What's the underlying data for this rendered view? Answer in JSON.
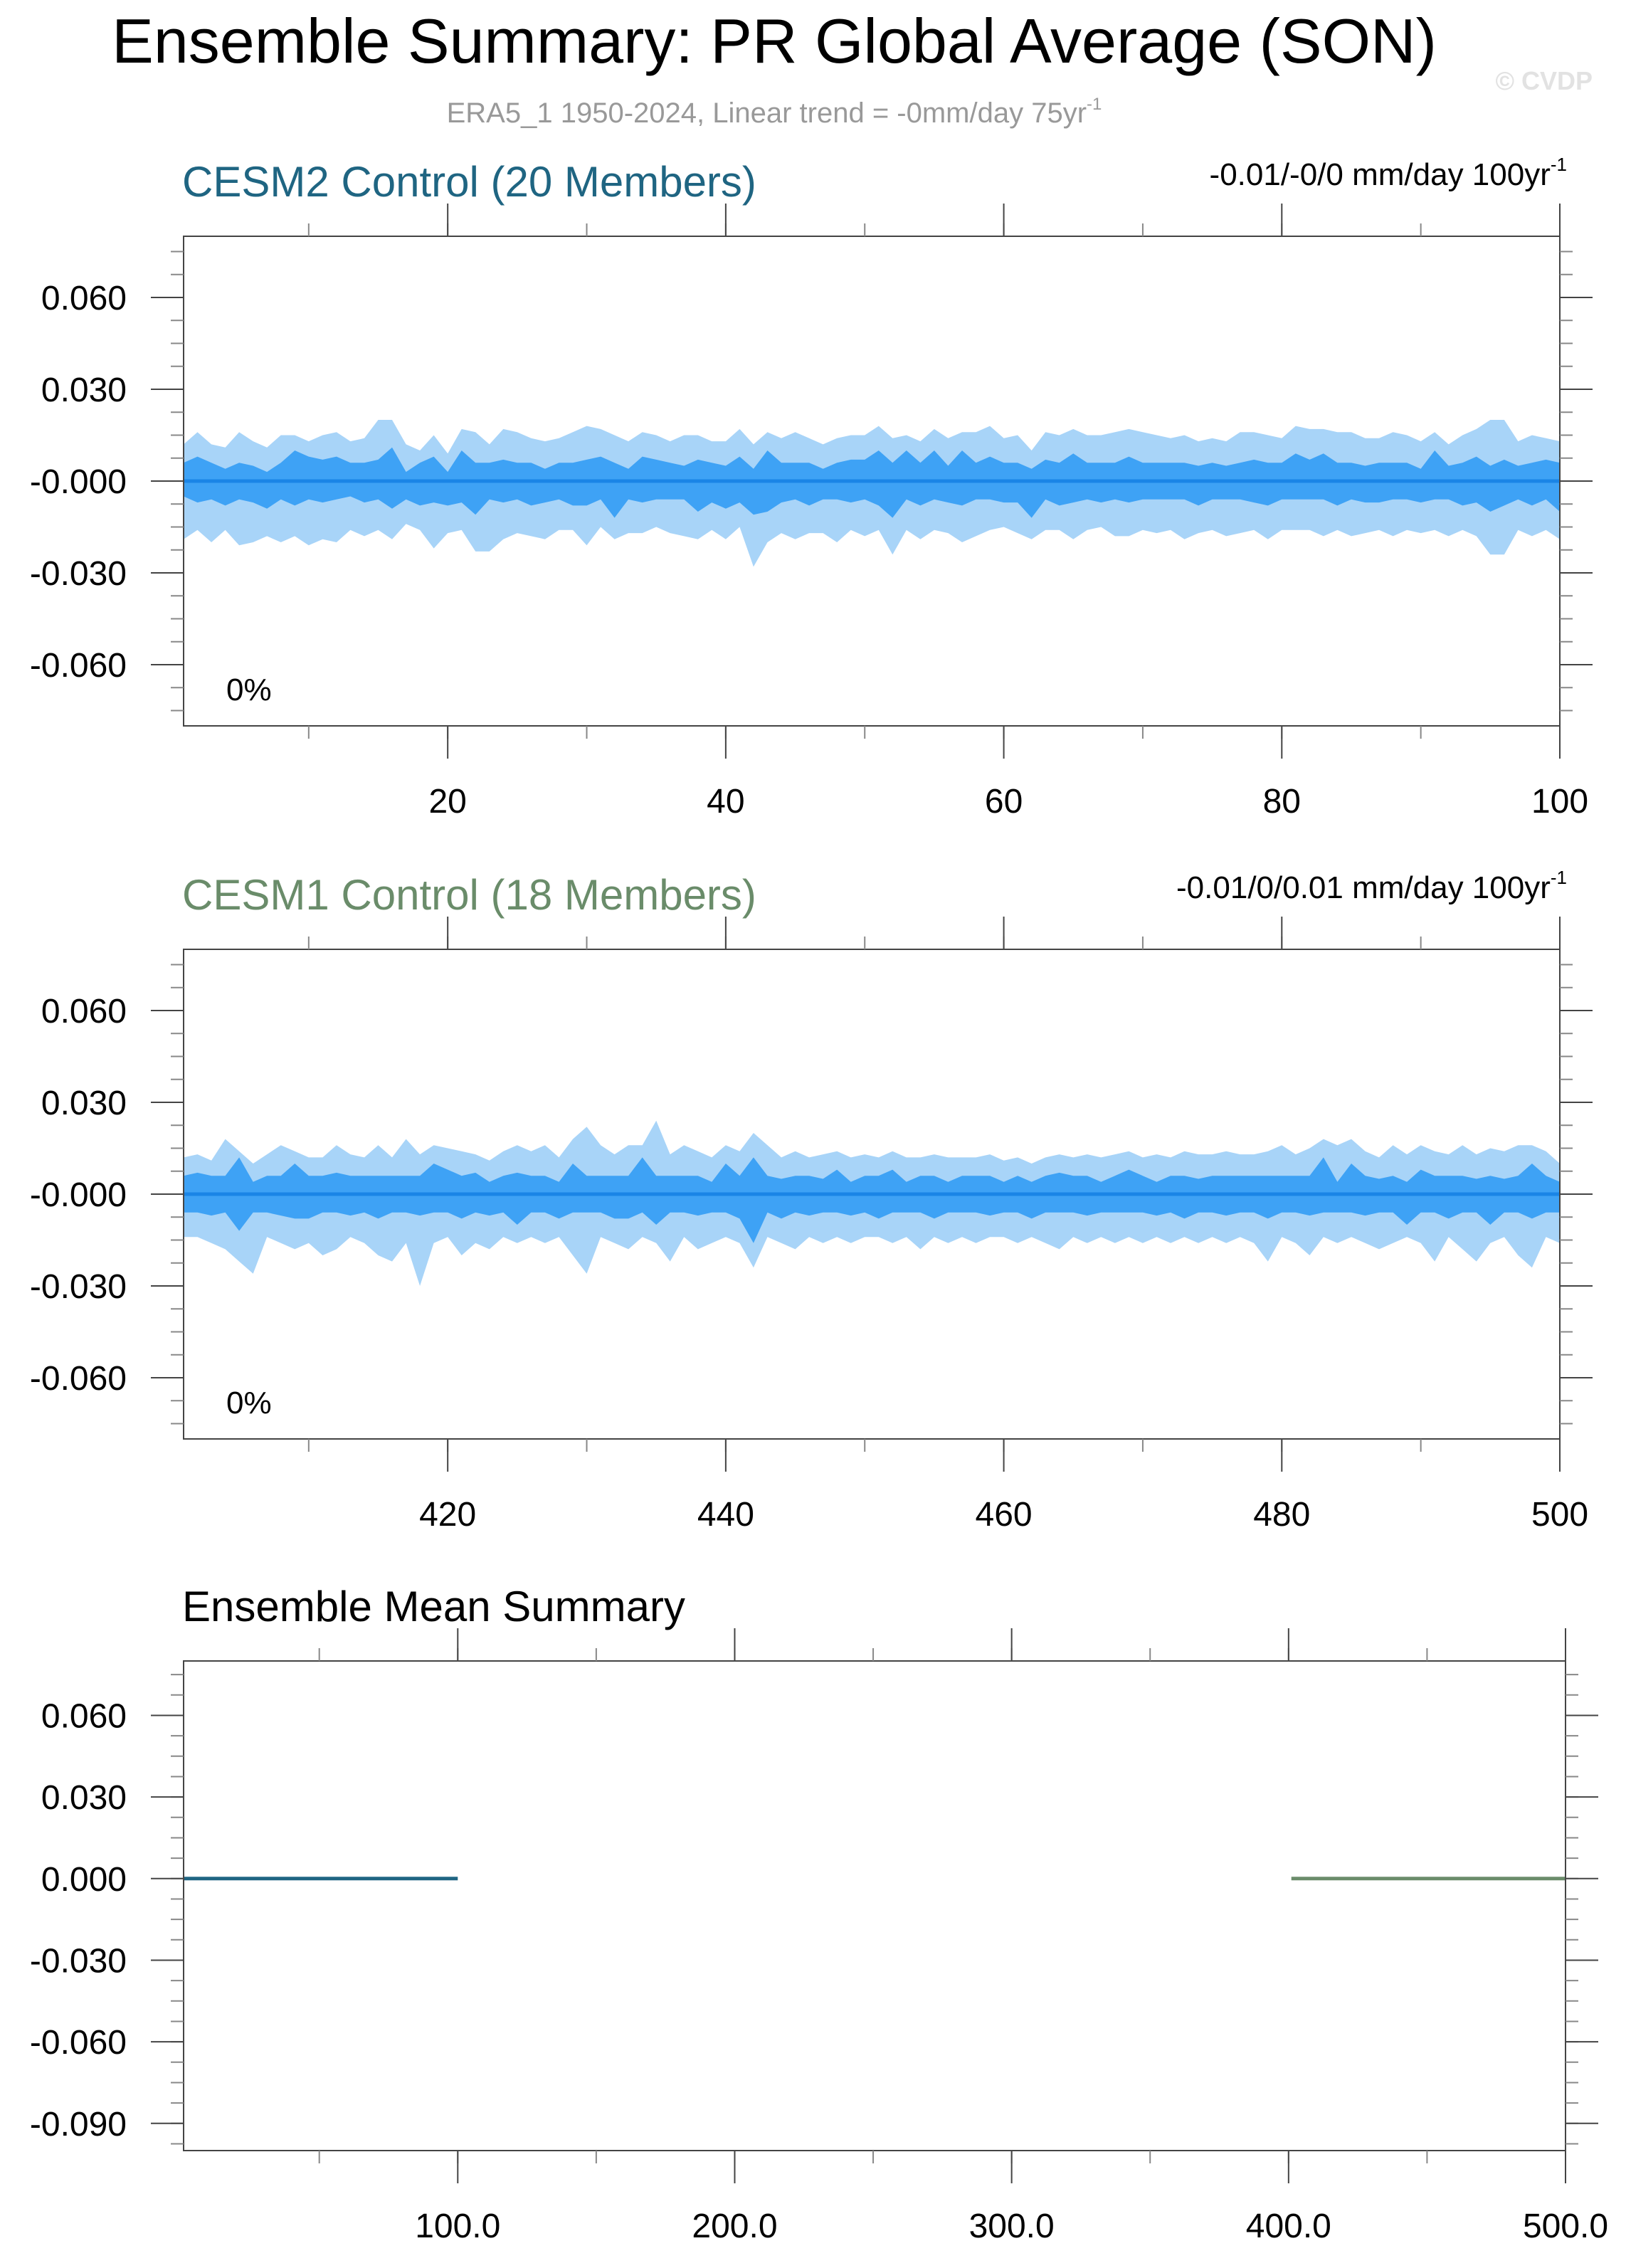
{
  "title": "Ensemble Summary: PR Global Average (SON)",
  "subtitle": "ERA5_1 1950-2024, Linear trend = -0mm/day 75yr",
  "subtitle_sup": "-1",
  "watermark": "© CVDP",
  "colors": {
    "cesm2": "#1f6582",
    "cesm1": "#6a8c6a",
    "band_outer": "#a8d4f8",
    "band_inner": "#3ea2f5",
    "mean_line": "#1a85e6",
    "axis": "#444444"
  },
  "chart_data": [
    {
      "type": "area",
      "title": "CESM2 Control (20 Members)",
      "trend_label": "-0.01/-0/0 mm/day 100yr",
      "trend_sup": "-1",
      "annotation": "0%",
      "xlim": [
        1,
        100
      ],
      "ylim": [
        -0.08,
        0.08
      ],
      "x_ticks": [
        20,
        40,
        60,
        80,
        100
      ],
      "x_tick_labels": [
        "20",
        "40",
        "60",
        "80",
        "100"
      ],
      "y_ticks": [
        0.06,
        0.03,
        0.0,
        -0.03,
        -0.06
      ],
      "y_tick_labels": [
        "0.060",
        "0.030",
        "-0.000",
        "-0.030",
        "-0.060"
      ],
      "x_start": 1,
      "outer_upper": [
        0.012,
        0.016,
        0.012,
        0.011,
        0.016,
        0.013,
        0.011,
        0.015,
        0.015,
        0.013,
        0.015,
        0.016,
        0.013,
        0.014,
        0.02,
        0.02,
        0.012,
        0.01,
        0.015,
        0.009,
        0.017,
        0.016,
        0.012,
        0.017,
        0.016,
        0.014,
        0.013,
        0.014,
        0.016,
        0.018,
        0.017,
        0.015,
        0.013,
        0.016,
        0.015,
        0.013,
        0.015,
        0.015,
        0.013,
        0.013,
        0.017,
        0.012,
        0.016,
        0.014,
        0.016,
        0.014,
        0.012,
        0.014,
        0.015,
        0.015,
        0.018,
        0.014,
        0.015,
        0.013,
        0.017,
        0.014,
        0.016,
        0.016,
        0.018,
        0.014,
        0.015,
        0.01,
        0.016,
        0.015,
        0.017,
        0.015,
        0.015,
        0.016,
        0.017,
        0.016,
        0.015,
        0.014,
        0.015,
        0.013,
        0.014,
        0.013,
        0.016,
        0.016,
        0.015,
        0.014,
        0.018,
        0.017,
        0.017,
        0.016,
        0.016,
        0.014,
        0.014,
        0.016,
        0.015,
        0.013,
        0.016,
        0.012,
        0.015,
        0.017,
        0.02,
        0.02,
        0.013,
        0.015,
        0.014,
        0.013
      ],
      "inner_upper": [
        0.006,
        0.008,
        0.006,
        0.004,
        0.006,
        0.005,
        0.003,
        0.006,
        0.01,
        0.008,
        0.007,
        0.008,
        0.006,
        0.006,
        0.007,
        0.011,
        0.003,
        0.006,
        0.008,
        0.003,
        0.01,
        0.006,
        0.006,
        0.007,
        0.006,
        0.006,
        0.004,
        0.006,
        0.006,
        0.007,
        0.008,
        0.006,
        0.004,
        0.008,
        0.007,
        0.006,
        0.005,
        0.007,
        0.006,
        0.005,
        0.008,
        0.004,
        0.01,
        0.006,
        0.006,
        0.006,
        0.004,
        0.006,
        0.007,
        0.007,
        0.01,
        0.006,
        0.01,
        0.006,
        0.01,
        0.005,
        0.01,
        0.006,
        0.008,
        0.006,
        0.006,
        0.004,
        0.007,
        0.006,
        0.009,
        0.006,
        0.006,
        0.006,
        0.008,
        0.006,
        0.006,
        0.006,
        0.006,
        0.005,
        0.006,
        0.005,
        0.006,
        0.007,
        0.006,
        0.006,
        0.009,
        0.007,
        0.009,
        0.006,
        0.006,
        0.005,
        0.006,
        0.006,
        0.006,
        0.004,
        0.01,
        0.005,
        0.006,
        0.008,
        0.005,
        0.007,
        0.005,
        0.006,
        0.007,
        0.006
      ],
      "inner_lower": [
        -0.005,
        -0.007,
        -0.006,
        -0.008,
        -0.006,
        -0.007,
        -0.009,
        -0.006,
        -0.008,
        -0.006,
        -0.007,
        -0.006,
        -0.005,
        -0.007,
        -0.006,
        -0.009,
        -0.006,
        -0.008,
        -0.007,
        -0.008,
        -0.007,
        -0.011,
        -0.006,
        -0.007,
        -0.006,
        -0.008,
        -0.007,
        -0.006,
        -0.008,
        -0.008,
        -0.006,
        -0.012,
        -0.006,
        -0.007,
        -0.006,
        -0.006,
        -0.006,
        -0.01,
        -0.007,
        -0.009,
        -0.007,
        -0.011,
        -0.01,
        -0.007,
        -0.006,
        -0.008,
        -0.006,
        -0.006,
        -0.007,
        -0.006,
        -0.008,
        -0.012,
        -0.006,
        -0.008,
        -0.006,
        -0.007,
        -0.008,
        -0.006,
        -0.006,
        -0.007,
        -0.007,
        -0.012,
        -0.006,
        -0.008,
        -0.007,
        -0.006,
        -0.007,
        -0.006,
        -0.007,
        -0.006,
        -0.006,
        -0.006,
        -0.006,
        -0.008,
        -0.006,
        -0.006,
        -0.006,
        -0.007,
        -0.008,
        -0.006,
        -0.006,
        -0.006,
        -0.006,
        -0.008,
        -0.006,
        -0.007,
        -0.007,
        -0.006,
        -0.006,
        -0.007,
        -0.006,
        -0.006,
        -0.008,
        -0.007,
        -0.01,
        -0.008,
        -0.006,
        -0.008,
        -0.006,
        -0.01
      ],
      "outer_lower": [
        -0.019,
        -0.016,
        -0.02,
        -0.016,
        -0.021,
        -0.02,
        -0.018,
        -0.02,
        -0.018,
        -0.021,
        -0.019,
        -0.02,
        -0.016,
        -0.018,
        -0.016,
        -0.019,
        -0.014,
        -0.016,
        -0.022,
        -0.017,
        -0.016,
        -0.023,
        -0.023,
        -0.019,
        -0.017,
        -0.018,
        -0.019,
        -0.016,
        -0.016,
        -0.021,
        -0.015,
        -0.019,
        -0.017,
        -0.017,
        -0.015,
        -0.017,
        -0.018,
        -0.019,
        -0.016,
        -0.019,
        -0.015,
        -0.028,
        -0.02,
        -0.017,
        -0.019,
        -0.017,
        -0.017,
        -0.02,
        -0.016,
        -0.018,
        -0.016,
        -0.024,
        -0.016,
        -0.019,
        -0.016,
        -0.017,
        -0.02,
        -0.018,
        -0.016,
        -0.015,
        -0.017,
        -0.019,
        -0.016,
        -0.016,
        -0.019,
        -0.016,
        -0.015,
        -0.018,
        -0.018,
        -0.016,
        -0.017,
        -0.016,
        -0.019,
        -0.017,
        -0.016,
        -0.018,
        -0.017,
        -0.016,
        -0.019,
        -0.016,
        -0.016,
        -0.016,
        -0.018,
        -0.016,
        -0.018,
        -0.017,
        -0.016,
        -0.018,
        -0.016,
        -0.017,
        -0.016,
        -0.018,
        -0.016,
        -0.018,
        -0.024,
        -0.024,
        -0.016,
        -0.018,
        -0.016,
        -0.019
      ],
      "mean": 0.0
    },
    {
      "type": "area",
      "title": "CESM1 Control (18 Members)",
      "trend_label": "-0.01/0/0.01 mm/day 100yr",
      "trend_sup": "-1",
      "annotation": "0%",
      "xlim": [
        401,
        500
      ],
      "ylim": [
        -0.08,
        0.08
      ],
      "x_ticks": [
        420,
        440,
        460,
        480,
        500
      ],
      "x_tick_labels": [
        "420",
        "440",
        "460",
        "480",
        "500"
      ],
      "y_ticks": [
        0.06,
        0.03,
        0.0,
        -0.03,
        -0.06
      ],
      "y_tick_labels": [
        "0.060",
        "0.030",
        "-0.000",
        "-0.030",
        "-0.060"
      ],
      "x_start": 401,
      "outer_upper": [
        0.012,
        0.013,
        0.011,
        0.018,
        0.014,
        0.01,
        0.013,
        0.016,
        0.014,
        0.012,
        0.012,
        0.016,
        0.013,
        0.012,
        0.016,
        0.012,
        0.018,
        0.013,
        0.016,
        0.015,
        0.014,
        0.013,
        0.011,
        0.014,
        0.016,
        0.014,
        0.016,
        0.012,
        0.018,
        0.022,
        0.016,
        0.013,
        0.016,
        0.016,
        0.024,
        0.013,
        0.016,
        0.014,
        0.012,
        0.016,
        0.014,
        0.02,
        0.016,
        0.012,
        0.014,
        0.012,
        0.013,
        0.014,
        0.012,
        0.013,
        0.012,
        0.014,
        0.012,
        0.012,
        0.013,
        0.012,
        0.012,
        0.012,
        0.013,
        0.011,
        0.012,
        0.01,
        0.012,
        0.013,
        0.012,
        0.013,
        0.012,
        0.013,
        0.014,
        0.012,
        0.013,
        0.012,
        0.014,
        0.013,
        0.013,
        0.014,
        0.013,
        0.013,
        0.014,
        0.016,
        0.013,
        0.015,
        0.018,
        0.016,
        0.018,
        0.014,
        0.012,
        0.016,
        0.013,
        0.016,
        0.014,
        0.013,
        0.016,
        0.013,
        0.015,
        0.014,
        0.016,
        0.016,
        0.014,
        0.01
      ],
      "inner_upper": [
        0.006,
        0.007,
        0.006,
        0.006,
        0.012,
        0.004,
        0.006,
        0.006,
        0.01,
        0.006,
        0.006,
        0.007,
        0.006,
        0.006,
        0.006,
        0.006,
        0.006,
        0.006,
        0.01,
        0.008,
        0.006,
        0.007,
        0.004,
        0.006,
        0.007,
        0.006,
        0.006,
        0.004,
        0.01,
        0.006,
        0.006,
        0.006,
        0.006,
        0.012,
        0.006,
        0.006,
        0.006,
        0.006,
        0.004,
        0.01,
        0.006,
        0.012,
        0.006,
        0.005,
        0.006,
        0.006,
        0.005,
        0.008,
        0.004,
        0.006,
        0.006,
        0.008,
        0.004,
        0.006,
        0.006,
        0.004,
        0.006,
        0.006,
        0.006,
        0.004,
        0.006,
        0.004,
        0.006,
        0.007,
        0.006,
        0.006,
        0.004,
        0.006,
        0.008,
        0.006,
        0.004,
        0.006,
        0.006,
        0.005,
        0.006,
        0.006,
        0.006,
        0.006,
        0.006,
        0.006,
        0.006,
        0.006,
        0.012,
        0.004,
        0.01,
        0.006,
        0.005,
        0.006,
        0.004,
        0.008,
        0.006,
        0.006,
        0.006,
        0.005,
        0.006,
        0.005,
        0.006,
        0.01,
        0.006,
        0.004
      ],
      "inner_lower": [
        -0.006,
        -0.006,
        -0.007,
        -0.006,
        -0.012,
        -0.006,
        -0.006,
        -0.007,
        -0.008,
        -0.008,
        -0.006,
        -0.006,
        -0.007,
        -0.006,
        -0.008,
        -0.006,
        -0.006,
        -0.007,
        -0.006,
        -0.006,
        -0.008,
        -0.006,
        -0.007,
        -0.006,
        -0.01,
        -0.006,
        -0.006,
        -0.008,
        -0.006,
        -0.006,
        -0.006,
        -0.008,
        -0.008,
        -0.006,
        -0.01,
        -0.006,
        -0.006,
        -0.007,
        -0.006,
        -0.006,
        -0.008,
        -0.016,
        -0.006,
        -0.008,
        -0.006,
        -0.007,
        -0.006,
        -0.006,
        -0.007,
        -0.006,
        -0.008,
        -0.006,
        -0.006,
        -0.006,
        -0.008,
        -0.006,
        -0.006,
        -0.006,
        -0.007,
        -0.006,
        -0.006,
        -0.008,
        -0.006,
        -0.006,
        -0.006,
        -0.007,
        -0.006,
        -0.006,
        -0.006,
        -0.006,
        -0.007,
        -0.006,
        -0.008,
        -0.006,
        -0.006,
        -0.007,
        -0.006,
        -0.006,
        -0.008,
        -0.006,
        -0.006,
        -0.007,
        -0.006,
        -0.006,
        -0.006,
        -0.007,
        -0.006,
        -0.006,
        -0.01,
        -0.006,
        -0.006,
        -0.008,
        -0.006,
        -0.006,
        -0.01,
        -0.006,
        -0.006,
        -0.008,
        -0.006,
        -0.006
      ],
      "outer_lower": [
        -0.014,
        -0.014,
        -0.016,
        -0.018,
        -0.022,
        -0.026,
        -0.014,
        -0.016,
        -0.018,
        -0.016,
        -0.02,
        -0.018,
        -0.014,
        -0.016,
        -0.02,
        -0.022,
        -0.016,
        -0.03,
        -0.016,
        -0.014,
        -0.02,
        -0.016,
        -0.018,
        -0.014,
        -0.016,
        -0.014,
        -0.016,
        -0.014,
        -0.02,
        -0.026,
        -0.014,
        -0.016,
        -0.018,
        -0.014,
        -0.016,
        -0.022,
        -0.014,
        -0.018,
        -0.016,
        -0.014,
        -0.016,
        -0.024,
        -0.014,
        -0.016,
        -0.018,
        -0.014,
        -0.016,
        -0.014,
        -0.016,
        -0.014,
        -0.014,
        -0.016,
        -0.014,
        -0.018,
        -0.014,
        -0.016,
        -0.014,
        -0.016,
        -0.014,
        -0.014,
        -0.016,
        -0.014,
        -0.016,
        -0.018,
        -0.014,
        -0.016,
        -0.014,
        -0.016,
        -0.014,
        -0.016,
        -0.014,
        -0.016,
        -0.014,
        -0.016,
        -0.014,
        -0.016,
        -0.014,
        -0.016,
        -0.022,
        -0.014,
        -0.016,
        -0.02,
        -0.014,
        -0.016,
        -0.014,
        -0.016,
        -0.018,
        -0.016,
        -0.014,
        -0.016,
        -0.022,
        -0.014,
        -0.018,
        -0.022,
        -0.016,
        -0.014,
        -0.02,
        -0.024,
        -0.014,
        -0.016
      ],
      "mean": 0.0
    },
    {
      "type": "line",
      "title": "Ensemble Mean Summary",
      "xlim": [
        1,
        500
      ],
      "ylim": [
        -0.1,
        0.08
      ],
      "x_ticks": [
        100,
        200,
        300,
        400,
        500
      ],
      "x_tick_labels": [
        "100.0",
        "200.0",
        "300.0",
        "400.0",
        "500.0"
      ],
      "y_ticks": [
        0.06,
        0.03,
        0.0,
        -0.03,
        -0.06,
        -0.09
      ],
      "y_tick_labels": [
        "0.060",
        "0.030",
        "0.000",
        "-0.030",
        "-0.060",
        "-0.090"
      ],
      "series": [
        {
          "x": [
            1,
            100
          ],
          "y": [
            0.0,
            0.0
          ],
          "color": "#1f6582"
        },
        {
          "x": [
            401,
            500
          ],
          "y": [
            0.0,
            0.0
          ],
          "color": "#6a8c6a"
        }
      ]
    }
  ]
}
